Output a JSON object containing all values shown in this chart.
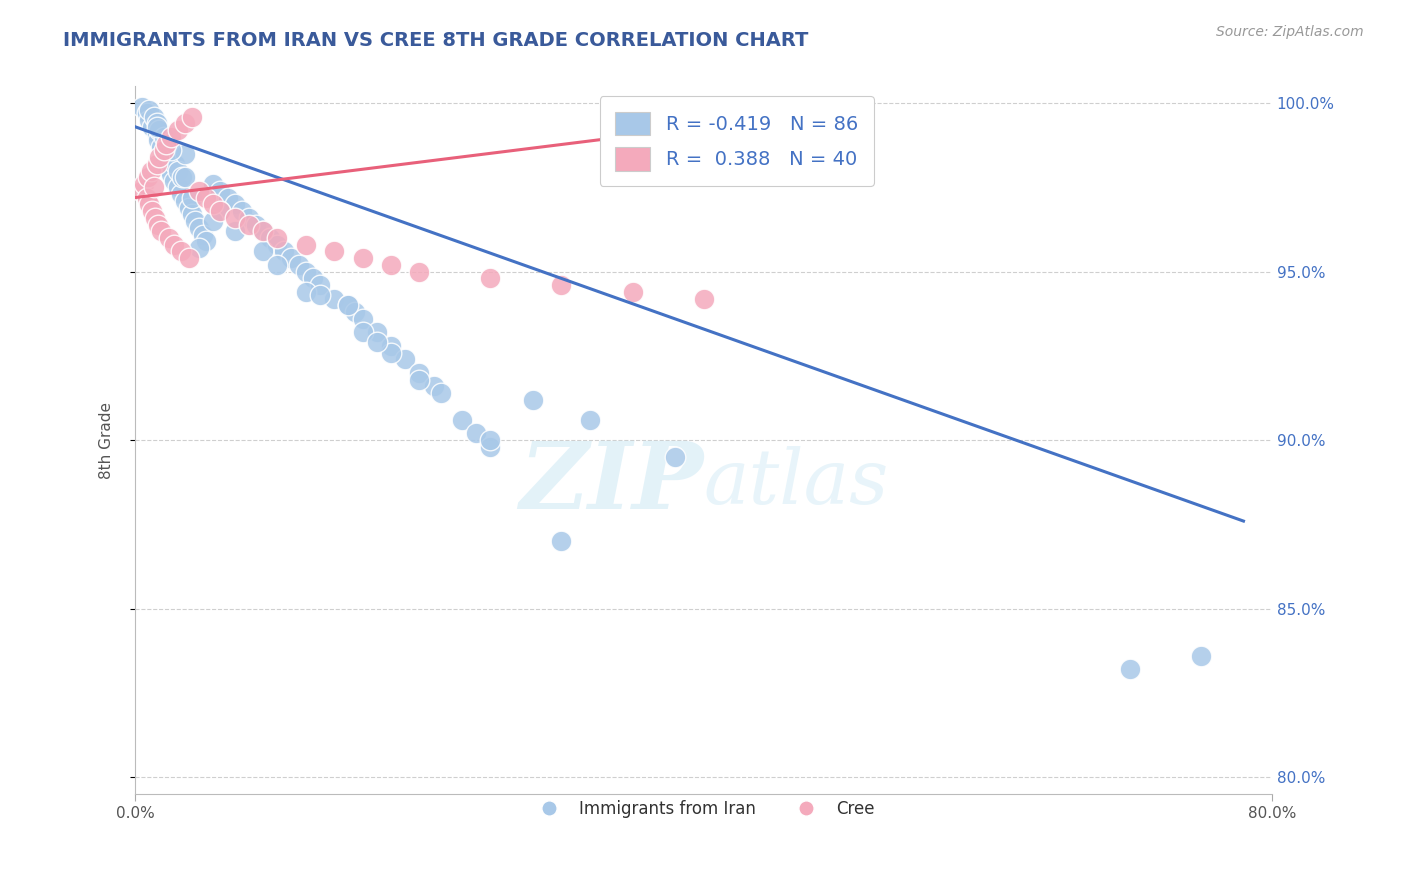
{
  "title": "IMMIGRANTS FROM IRAN VS CREE 8TH GRADE CORRELATION CHART",
  "source_text": "Source: ZipAtlas.com",
  "ylabel": "8th Grade",
  "xlim": [
    0.0,
    0.8
  ],
  "ylim": [
    0.795,
    1.005
  ],
  "xtick_vals": [
    0.0,
    0.8
  ],
  "xticklabels": [
    "0.0%",
    "80.0%"
  ],
  "yticks": [
    0.8,
    0.85,
    0.9,
    0.95,
    1.0
  ],
  "yticklabels": [
    "80.0%",
    "85.0%",
    "90.0%",
    "95.0%",
    "100.0%"
  ],
  "blue_color": "#a8c8e8",
  "pink_color": "#f4aabc",
  "blue_line_color": "#4472c4",
  "pink_line_color": "#e8607a",
  "title_color": "#3a5a9a",
  "watermark_zip": "ZIP",
  "watermark_atlas": "atlas",
  "blue_line_x": [
    0.0,
    0.78
  ],
  "blue_line_y": [
    0.993,
    0.876
  ],
  "pink_line_x": [
    0.0,
    0.4
  ],
  "pink_line_y": [
    0.972,
    0.993
  ],
  "grid_color": "#bbbbbb",
  "background_color": "#ffffff",
  "blue_scatter_x": [
    0.005,
    0.008,
    0.01,
    0.01,
    0.012,
    0.013,
    0.015,
    0.015,
    0.016,
    0.017,
    0.018,
    0.02,
    0.02,
    0.021,
    0.022,
    0.023,
    0.025,
    0.025,
    0.027,
    0.028,
    0.03,
    0.03,
    0.032,
    0.033,
    0.035,
    0.038,
    0.04,
    0.04,
    0.042,
    0.045,
    0.048,
    0.05,
    0.055,
    0.06,
    0.065,
    0.07,
    0.075,
    0.08,
    0.085,
    0.09,
    0.095,
    0.1,
    0.105,
    0.11,
    0.115,
    0.12,
    0.125,
    0.13,
    0.14,
    0.15,
    0.155,
    0.16,
    0.17,
    0.18,
    0.19,
    0.2,
    0.21,
    0.215,
    0.23,
    0.24,
    0.25,
    0.3,
    0.035,
    0.06,
    0.09,
    0.12,
    0.16,
    0.2,
    0.25,
    0.015,
    0.025,
    0.035,
    0.1,
    0.15,
    0.7,
    0.75,
    0.18,
    0.07,
    0.045,
    0.055,
    0.13,
    0.17,
    0.28,
    0.32,
    0.38
  ],
  "blue_scatter_y": [
    0.999,
    0.997,
    0.995,
    0.998,
    0.993,
    0.996,
    0.991,
    0.994,
    0.989,
    0.992,
    0.987,
    0.985,
    0.99,
    0.983,
    0.981,
    0.988,
    0.979,
    0.984,
    0.977,
    0.982,
    0.975,
    0.98,
    0.973,
    0.978,
    0.971,
    0.969,
    0.967,
    0.972,
    0.965,
    0.963,
    0.961,
    0.959,
    0.976,
    0.974,
    0.972,
    0.97,
    0.968,
    0.966,
    0.964,
    0.962,
    0.96,
    0.958,
    0.956,
    0.954,
    0.952,
    0.95,
    0.948,
    0.946,
    0.942,
    0.94,
    0.938,
    0.936,
    0.932,
    0.928,
    0.924,
    0.92,
    0.916,
    0.914,
    0.906,
    0.902,
    0.898,
    0.87,
    0.985,
    0.968,
    0.956,
    0.944,
    0.932,
    0.918,
    0.9,
    0.993,
    0.986,
    0.978,
    0.952,
    0.94,
    0.832,
    0.836,
    0.926,
    0.962,
    0.957,
    0.965,
    0.943,
    0.929,
    0.912,
    0.906,
    0.895
  ],
  "pink_scatter_x": [
    0.004,
    0.006,
    0.008,
    0.009,
    0.01,
    0.011,
    0.012,
    0.013,
    0.014,
    0.015,
    0.016,
    0.017,
    0.018,
    0.02,
    0.022,
    0.024,
    0.025,
    0.027,
    0.03,
    0.032,
    0.035,
    0.038,
    0.04,
    0.045,
    0.05,
    0.055,
    0.06,
    0.07,
    0.08,
    0.09,
    0.1,
    0.12,
    0.14,
    0.16,
    0.18,
    0.2,
    0.25,
    0.3,
    0.35,
    0.4
  ],
  "pink_scatter_y": [
    0.974,
    0.976,
    0.972,
    0.978,
    0.97,
    0.98,
    0.968,
    0.975,
    0.966,
    0.982,
    0.964,
    0.984,
    0.962,
    0.986,
    0.988,
    0.96,
    0.99,
    0.958,
    0.992,
    0.956,
    0.994,
    0.954,
    0.996,
    0.974,
    0.972,
    0.97,
    0.968,
    0.966,
    0.964,
    0.962,
    0.96,
    0.958,
    0.956,
    0.954,
    0.952,
    0.95,
    0.948,
    0.946,
    0.944,
    0.942
  ]
}
